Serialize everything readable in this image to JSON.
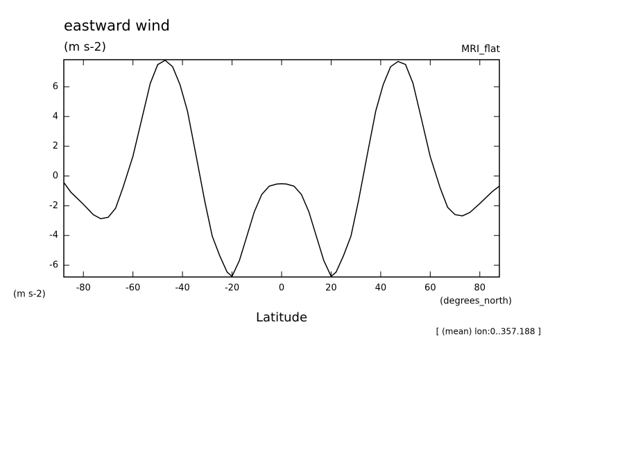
{
  "chart_data": {
    "type": "line",
    "title": "eastward wind",
    "units": "(m s-2)",
    "model": "MRI_flat",
    "y_label": "(m s-2)",
    "x_units": "(degrees_north)",
    "x_label": "Latitude",
    "note": "[ (mean) lon:0..357.188 ]",
    "x": [
      -87.9,
      -85,
      -80,
      -76,
      -73,
      -70,
      -67,
      -64,
      -60,
      -56,
      -53,
      -50,
      -47,
      -44,
      -41,
      -38,
      -35,
      -31,
      -28,
      -25,
      -22,
      -20,
      -17,
      -14,
      -11,
      -8,
      -5,
      -2,
      0,
      2,
      5,
      8,
      11,
      14,
      17,
      20,
      22,
      25,
      28,
      31,
      35,
      38,
      41,
      44,
      47,
      50,
      53,
      56,
      60,
      64,
      67,
      70,
      73,
      76,
      80,
      85,
      87.9
    ],
    "series": [
      {
        "name": "eastward wind",
        "color": "#000000",
        "values": [
          -0.44,
          -1.1,
          -1.9,
          -2.6,
          -2.87,
          -2.78,
          -2.17,
          -0.77,
          1.33,
          4.13,
          6.23,
          7.49,
          7.78,
          7.35,
          6.14,
          4.37,
          1.8,
          -1.7,
          -4.04,
          -5.35,
          -6.46,
          -6.75,
          -5.67,
          -4.04,
          -2.4,
          -1.24,
          -0.68,
          -0.54,
          -0.52,
          -0.54,
          -0.68,
          -1.24,
          -2.4,
          -4.04,
          -5.67,
          -6.75,
          -6.46,
          -5.35,
          -4.04,
          -1.7,
          1.8,
          4.37,
          6.14,
          7.35,
          7.7,
          7.5,
          6.25,
          4.15,
          1.3,
          -0.8,
          -2.1,
          -2.6,
          -2.68,
          -2.45,
          -1.85,
          -1.05,
          -0.68
        ]
      }
    ],
    "xlim": [
      -87.9,
      87.9
    ],
    "ylim": [
      -6.79,
      7.82
    ],
    "xticks": [
      -80,
      -60,
      -40,
      -20,
      0,
      20,
      40,
      60,
      80
    ],
    "yticks": [
      -6,
      -4,
      -2,
      0,
      2,
      4,
      6
    ]
  }
}
